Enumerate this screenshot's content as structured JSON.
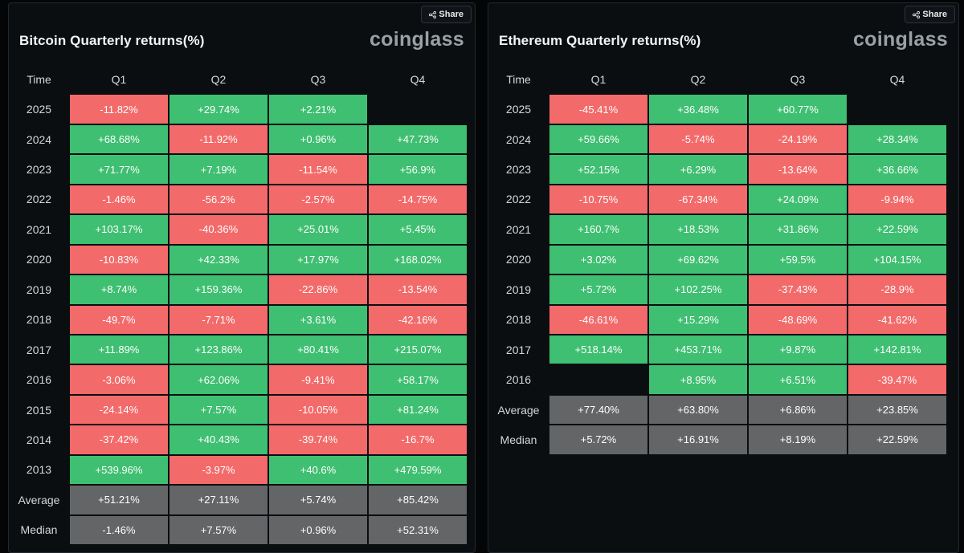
{
  "colors": {
    "positive": "#3ebf71",
    "negative": "#f36a6a",
    "stat": "#636567",
    "background": "#0b0e11"
  },
  "share_label": "Share",
  "share_icon": "share-icon",
  "brand": "coinglass",
  "columns": [
    "Time",
    "Q1",
    "Q2",
    "Q3",
    "Q4"
  ],
  "bitcoin": {
    "title": "Bitcoin Quarterly returns(%)",
    "rows": [
      {
        "year": "2025",
        "q": [
          "-11.82%",
          "+29.74%",
          "+2.21%",
          ""
        ]
      },
      {
        "year": "2024",
        "q": [
          "+68.68%",
          "-11.92%",
          "+0.96%",
          "+47.73%"
        ]
      },
      {
        "year": "2023",
        "q": [
          "+71.77%",
          "+7.19%",
          "-11.54%",
          "+56.9%"
        ]
      },
      {
        "year": "2022",
        "q": [
          "-1.46%",
          "-56.2%",
          "-2.57%",
          "-14.75%"
        ]
      },
      {
        "year": "2021",
        "q": [
          "+103.17%",
          "-40.36%",
          "+25.01%",
          "+5.45%"
        ]
      },
      {
        "year": "2020",
        "q": [
          "-10.83%",
          "+42.33%",
          "+17.97%",
          "+168.02%"
        ]
      },
      {
        "year": "2019",
        "q": [
          "+8.74%",
          "+159.36%",
          "-22.86%",
          "-13.54%"
        ]
      },
      {
        "year": "2018",
        "q": [
          "-49.7%",
          "-7.71%",
          "+3.61%",
          "-42.16%"
        ]
      },
      {
        "year": "2017",
        "q": [
          "+11.89%",
          "+123.86%",
          "+80.41%",
          "+215.07%"
        ]
      },
      {
        "year": "2016",
        "q": [
          "-3.06%",
          "+62.06%",
          "-9.41%",
          "+58.17%"
        ]
      },
      {
        "year": "2015",
        "q": [
          "-24.14%",
          "+7.57%",
          "-10.05%",
          "+81.24%"
        ]
      },
      {
        "year": "2014",
        "q": [
          "-37.42%",
          "+40.43%",
          "-39.74%",
          "-16.7%"
        ]
      },
      {
        "year": "2013",
        "q": [
          "+539.96%",
          "-3.97%",
          "+40.6%",
          "+479.59%"
        ]
      }
    ],
    "stats": [
      {
        "label": "Average",
        "q": [
          "+51.21%",
          "+27.11%",
          "+5.74%",
          "+85.42%"
        ]
      },
      {
        "label": "Median",
        "q": [
          "-1.46%",
          "+7.57%",
          "+0.96%",
          "+52.31%"
        ]
      }
    ]
  },
  "ethereum": {
    "title": "Ethereum Quarterly returns(%)",
    "rows": [
      {
        "year": "2025",
        "q": [
          "-45.41%",
          "+36.48%",
          "+60.77%",
          ""
        ]
      },
      {
        "year": "2024",
        "q": [
          "+59.66%",
          "-5.74%",
          "-24.19%",
          "+28.34%"
        ]
      },
      {
        "year": "2023",
        "q": [
          "+52.15%",
          "+6.29%",
          "-13.64%",
          "+36.66%"
        ]
      },
      {
        "year": "2022",
        "q": [
          "-10.75%",
          "-67.34%",
          "+24.09%",
          "-9.94%"
        ]
      },
      {
        "year": "2021",
        "q": [
          "+160.7%",
          "+18.53%",
          "+31.86%",
          "+22.59%"
        ]
      },
      {
        "year": "2020",
        "q": [
          "+3.02%",
          "+69.62%",
          "+59.5%",
          "+104.15%"
        ]
      },
      {
        "year": "2019",
        "q": [
          "+5.72%",
          "+102.25%",
          "-37.43%",
          "-28.9%"
        ]
      },
      {
        "year": "2018",
        "q": [
          "-46.61%",
          "+15.29%",
          "-48.69%",
          "-41.62%"
        ]
      },
      {
        "year": "2017",
        "q": [
          "+518.14%",
          "+453.71%",
          "+9.87%",
          "+142.81%"
        ]
      },
      {
        "year": "2016",
        "q": [
          "",
          "+8.95%",
          "+6.51%",
          "-39.47%"
        ]
      }
    ],
    "stats": [
      {
        "label": "Average",
        "q": [
          "+77.40%",
          "+63.80%",
          "+6.86%",
          "+23.85%"
        ]
      },
      {
        "label": "Median",
        "q": [
          "+5.72%",
          "+16.91%",
          "+8.19%",
          "+22.59%"
        ]
      }
    ]
  }
}
